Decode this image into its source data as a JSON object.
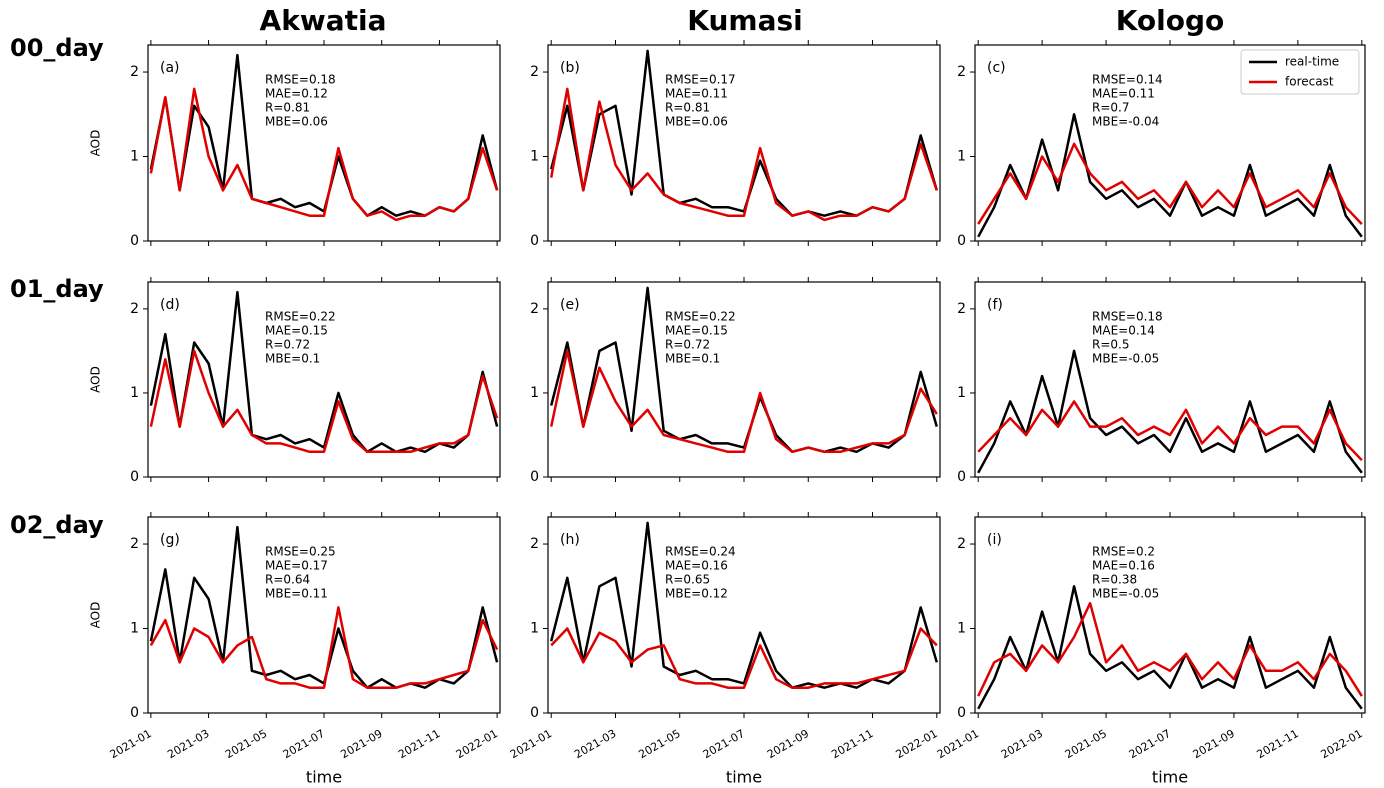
{
  "column_titles": [
    "Akwatia",
    "Kumasi",
    "Kologo"
  ],
  "row_labels": [
    "00_day",
    "01_day",
    "02_day"
  ],
  "chart_data": [
    {
      "type": "line",
      "label": "(a)",
      "ylabel": "AOD",
      "annotations": [
        "RMSE=0.18",
        "MAE=0.12",
        "R=0.81",
        "MBE=0.06"
      ],
      "x": [
        0,
        0.5,
        1,
        1.5,
        2,
        2.5,
        3,
        3.5,
        4,
        4.5,
        5,
        5.5,
        6,
        6.5,
        7,
        7.5,
        8,
        8.5,
        9,
        9.5,
        10,
        10.5,
        11,
        11.5,
        12
      ],
      "xlim": [
        -0.1,
        12.1
      ],
      "xticks": [
        0,
        2,
        4,
        6,
        8,
        10,
        12
      ],
      "ylim": [
        0,
        2.32
      ],
      "yticks": [
        0,
        1,
        2
      ],
      "series": [
        {
          "color": "#000000",
          "values": [
            0.85,
            1.7,
            0.6,
            1.6,
            1.35,
            0.6,
            2.2,
            0.5,
            0.45,
            0.5,
            0.4,
            0.45,
            0.35,
            1.0,
            0.5,
            0.3,
            0.4,
            0.3,
            0.35,
            0.3,
            0.4,
            0.35,
            0.5,
            1.25,
            0.6
          ]
        },
        {
          "color": "#e00000",
          "values": [
            0.8,
            1.7,
            0.6,
            1.8,
            1.0,
            0.6,
            0.9,
            0.5,
            0.45,
            0.4,
            0.35,
            0.3,
            0.3,
            1.1,
            0.5,
            0.3,
            0.35,
            0.25,
            0.3,
            0.3,
            0.4,
            0.35,
            0.5,
            1.1,
            0.6
          ]
        }
      ]
    },
    {
      "type": "line",
      "label": "(b)",
      "annotations": [
        "RMSE=0.17",
        "MAE=0.11",
        "R=0.81",
        "MBE=0.06"
      ],
      "x": [
        0,
        0.5,
        1,
        1.5,
        2,
        2.5,
        3,
        3.5,
        4,
        4.5,
        5,
        5.5,
        6,
        6.5,
        7,
        7.5,
        8,
        8.5,
        9,
        9.5,
        10,
        10.5,
        11,
        11.5,
        12
      ],
      "xlim": [
        -0.1,
        12.1
      ],
      "xticks": [
        0,
        2,
        4,
        6,
        8,
        10,
        12
      ],
      "ylim": [
        0,
        2.32
      ],
      "yticks": [
        0,
        1,
        2
      ],
      "series": [
        {
          "color": "#000000",
          "values": [
            0.85,
            1.6,
            0.6,
            1.5,
            1.6,
            0.55,
            2.25,
            0.55,
            0.45,
            0.5,
            0.4,
            0.4,
            0.35,
            0.95,
            0.5,
            0.3,
            0.35,
            0.3,
            0.35,
            0.3,
            0.4,
            0.35,
            0.5,
            1.25,
            0.6
          ]
        },
        {
          "color": "#e00000",
          "values": [
            0.75,
            1.8,
            0.6,
            1.65,
            0.9,
            0.6,
            0.8,
            0.55,
            0.45,
            0.4,
            0.35,
            0.3,
            0.3,
            1.1,
            0.45,
            0.3,
            0.35,
            0.25,
            0.3,
            0.3,
            0.4,
            0.35,
            0.5,
            1.15,
            0.6
          ]
        }
      ]
    },
    {
      "type": "line",
      "label": "(c)",
      "annotations": [
        "RMSE=0.14",
        "MAE=0.11",
        "R=0.7",
        "MBE=-0.04"
      ],
      "legend": "upper right",
      "x": [
        0,
        0.5,
        1,
        1.5,
        2,
        2.5,
        3,
        3.5,
        4,
        4.5,
        5,
        5.5,
        6,
        6.5,
        7,
        7.5,
        8,
        8.5,
        9,
        9.5,
        10,
        10.5,
        11,
        11.5,
        12
      ],
      "xlim": [
        -0.1,
        12.1
      ],
      "xticks": [
        0,
        2,
        4,
        6,
        8,
        10,
        12
      ],
      "ylim": [
        0,
        2.32
      ],
      "yticks": [
        0,
        1,
        2
      ],
      "series": [
        {
          "name": "real-time",
          "color": "#000000",
          "values": [
            0.05,
            0.4,
            0.9,
            0.5,
            1.2,
            0.6,
            1.5,
            0.7,
            0.5,
            0.6,
            0.4,
            0.5,
            0.3,
            0.7,
            0.3,
            0.4,
            0.3,
            0.9,
            0.3,
            0.4,
            0.5,
            0.3,
            0.9,
            0.3,
            0.05
          ]
        },
        {
          "name": "forecast",
          "color": "#e00000",
          "values": [
            0.2,
            0.5,
            0.8,
            0.5,
            1.0,
            0.7,
            1.15,
            0.8,
            0.6,
            0.7,
            0.5,
            0.6,
            0.4,
            0.7,
            0.4,
            0.6,
            0.4,
            0.8,
            0.4,
            0.5,
            0.6,
            0.4,
            0.8,
            0.4,
            0.2
          ]
        }
      ]
    },
    {
      "type": "line",
      "label": "(d)",
      "ylabel": "AOD",
      "annotations": [
        "RMSE=0.22",
        "MAE=0.15",
        "R=0.72",
        "MBE=0.1"
      ],
      "x": [
        0,
        0.5,
        1,
        1.5,
        2,
        2.5,
        3,
        3.5,
        4,
        4.5,
        5,
        5.5,
        6,
        6.5,
        7,
        7.5,
        8,
        8.5,
        9,
        9.5,
        10,
        10.5,
        11,
        11.5,
        12
      ],
      "xlim": [
        -0.1,
        12.1
      ],
      "xticks": [
        0,
        2,
        4,
        6,
        8,
        10,
        12
      ],
      "ylim": [
        0,
        2.32
      ],
      "yticks": [
        0,
        1,
        2
      ],
      "series": [
        {
          "color": "#000000",
          "values": [
            0.85,
            1.7,
            0.6,
            1.6,
            1.35,
            0.6,
            2.2,
            0.5,
            0.45,
            0.5,
            0.4,
            0.45,
            0.35,
            1.0,
            0.5,
            0.3,
            0.4,
            0.3,
            0.35,
            0.3,
            0.4,
            0.35,
            0.5,
            1.25,
            0.6
          ]
        },
        {
          "color": "#e00000",
          "values": [
            0.6,
            1.4,
            0.6,
            1.5,
            1.0,
            0.6,
            0.8,
            0.5,
            0.4,
            0.4,
            0.35,
            0.3,
            0.3,
            0.9,
            0.45,
            0.3,
            0.3,
            0.3,
            0.3,
            0.35,
            0.4,
            0.4,
            0.5,
            1.2,
            0.7
          ]
        }
      ]
    },
    {
      "type": "line",
      "label": "(e)",
      "annotations": [
        "RMSE=0.22",
        "MAE=0.15",
        "R=0.72",
        "MBE=0.1"
      ],
      "x": [
        0,
        0.5,
        1,
        1.5,
        2,
        2.5,
        3,
        3.5,
        4,
        4.5,
        5,
        5.5,
        6,
        6.5,
        7,
        7.5,
        8,
        8.5,
        9,
        9.5,
        10,
        10.5,
        11,
        11.5,
        12
      ],
      "xlim": [
        -0.1,
        12.1
      ],
      "xticks": [
        0,
        2,
        4,
        6,
        8,
        10,
        12
      ],
      "ylim": [
        0,
        2.32
      ],
      "yticks": [
        0,
        1,
        2
      ],
      "series": [
        {
          "color": "#000000",
          "values": [
            0.85,
            1.6,
            0.6,
            1.5,
            1.6,
            0.55,
            2.25,
            0.55,
            0.45,
            0.5,
            0.4,
            0.4,
            0.35,
            0.95,
            0.5,
            0.3,
            0.35,
            0.3,
            0.35,
            0.3,
            0.4,
            0.35,
            0.5,
            1.25,
            0.6
          ]
        },
        {
          "color": "#e00000",
          "values": [
            0.6,
            1.5,
            0.6,
            1.3,
            0.9,
            0.6,
            0.8,
            0.5,
            0.45,
            0.4,
            0.35,
            0.3,
            0.3,
            1.0,
            0.45,
            0.3,
            0.35,
            0.3,
            0.3,
            0.35,
            0.4,
            0.4,
            0.5,
            1.05,
            0.75
          ]
        }
      ]
    },
    {
      "type": "line",
      "label": "(f)",
      "annotations": [
        "RMSE=0.18",
        "MAE=0.14",
        "R=0.5",
        "MBE=-0.05"
      ],
      "x": [
        0,
        0.5,
        1,
        1.5,
        2,
        2.5,
        3,
        3.5,
        4,
        4.5,
        5,
        5.5,
        6,
        6.5,
        7,
        7.5,
        8,
        8.5,
        9,
        9.5,
        10,
        10.5,
        11,
        11.5,
        12
      ],
      "xlim": [
        -0.1,
        12.1
      ],
      "xticks": [
        0,
        2,
        4,
        6,
        8,
        10,
        12
      ],
      "ylim": [
        0,
        2.32
      ],
      "yticks": [
        0,
        1,
        2
      ],
      "series": [
        {
          "color": "#000000",
          "values": [
            0.05,
            0.4,
            0.9,
            0.5,
            1.2,
            0.6,
            1.5,
            0.7,
            0.5,
            0.6,
            0.4,
            0.5,
            0.3,
            0.7,
            0.3,
            0.4,
            0.3,
            0.9,
            0.3,
            0.4,
            0.5,
            0.3,
            0.9,
            0.3,
            0.05
          ]
        },
        {
          "color": "#e00000",
          "values": [
            0.3,
            0.5,
            0.7,
            0.5,
            0.8,
            0.6,
            0.9,
            0.6,
            0.6,
            0.7,
            0.5,
            0.6,
            0.5,
            0.8,
            0.4,
            0.6,
            0.4,
            0.7,
            0.5,
            0.6,
            0.6,
            0.4,
            0.8,
            0.4,
            0.2
          ]
        }
      ]
    },
    {
      "type": "line",
      "label": "(g)",
      "ylabel": "AOD",
      "xlabel": "time",
      "annotations": [
        "RMSE=0.25",
        "MAE=0.17",
        "R=0.64",
        "MBE=0.11"
      ],
      "x": [
        0,
        0.5,
        1,
        1.5,
        2,
        2.5,
        3,
        3.5,
        4,
        4.5,
        5,
        5.5,
        6,
        6.5,
        7,
        7.5,
        8,
        8.5,
        9,
        9.5,
        10,
        10.5,
        11,
        11.5,
        12
      ],
      "xlim": [
        -0.1,
        12.1
      ],
      "xticks": [
        {
          "value": 0,
          "label": "2021-01"
        },
        {
          "value": 2,
          "label": "2021-03"
        },
        {
          "value": 4,
          "label": "2021-05"
        },
        {
          "value": 6,
          "label": "2021-07"
        },
        {
          "value": 8,
          "label": "2021-09"
        },
        {
          "value": 10,
          "label": "2021-11"
        },
        {
          "value": 12,
          "label": "2022-01"
        }
      ],
      "ylim": [
        0,
        2.32
      ],
      "yticks": [
        0,
        1,
        2
      ],
      "series": [
        {
          "color": "#000000",
          "values": [
            0.85,
            1.7,
            0.6,
            1.6,
            1.35,
            0.6,
            2.2,
            0.5,
            0.45,
            0.5,
            0.4,
            0.45,
            0.35,
            1.0,
            0.5,
            0.3,
            0.4,
            0.3,
            0.35,
            0.3,
            0.4,
            0.35,
            0.5,
            1.25,
            0.6
          ]
        },
        {
          "color": "#e00000",
          "values": [
            0.8,
            1.1,
            0.6,
            1.0,
            0.9,
            0.6,
            0.8,
            0.9,
            0.4,
            0.35,
            0.35,
            0.3,
            0.3,
            1.25,
            0.4,
            0.3,
            0.3,
            0.3,
            0.35,
            0.35,
            0.4,
            0.45,
            0.5,
            1.1,
            0.75
          ]
        }
      ]
    },
    {
      "type": "line",
      "label": "(h)",
      "xlabel": "time",
      "annotations": [
        "RMSE=0.24",
        "MAE=0.16",
        "R=0.65",
        "MBE=0.12"
      ],
      "x": [
        0,
        0.5,
        1,
        1.5,
        2,
        2.5,
        3,
        3.5,
        4,
        4.5,
        5,
        5.5,
        6,
        6.5,
        7,
        7.5,
        8,
        8.5,
        9,
        9.5,
        10,
        10.5,
        11,
        11.5,
        12
      ],
      "xlim": [
        -0.1,
        12.1
      ],
      "xticks": [
        {
          "value": 0,
          "label": "2021-01"
        },
        {
          "value": 2,
          "label": "2021-03"
        },
        {
          "value": 4,
          "label": "2021-05"
        },
        {
          "value": 6,
          "label": "2021-07"
        },
        {
          "value": 8,
          "label": "2021-09"
        },
        {
          "value": 10,
          "label": "2021-11"
        },
        {
          "value": 12,
          "label": "2022-01"
        }
      ],
      "ylim": [
        0,
        2.32
      ],
      "yticks": [
        0,
        1,
        2
      ],
      "series": [
        {
          "color": "#000000",
          "values": [
            0.85,
            1.6,
            0.6,
            1.5,
            1.6,
            0.55,
            2.25,
            0.55,
            0.45,
            0.5,
            0.4,
            0.4,
            0.35,
            0.95,
            0.5,
            0.3,
            0.35,
            0.3,
            0.35,
            0.3,
            0.4,
            0.35,
            0.5,
            1.25,
            0.6
          ]
        },
        {
          "color": "#e00000",
          "values": [
            0.8,
            1.0,
            0.6,
            0.95,
            0.85,
            0.6,
            0.75,
            0.8,
            0.4,
            0.35,
            0.35,
            0.3,
            0.3,
            0.8,
            0.4,
            0.3,
            0.3,
            0.35,
            0.35,
            0.35,
            0.4,
            0.45,
            0.5,
            1.0,
            0.8
          ]
        }
      ]
    },
    {
      "type": "line",
      "label": "(i)",
      "xlabel": "time",
      "annotations": [
        "RMSE=0.2",
        "MAE=0.16",
        "R=0.38",
        "MBE=-0.05"
      ],
      "x": [
        0,
        0.5,
        1,
        1.5,
        2,
        2.5,
        3,
        3.5,
        4,
        4.5,
        5,
        5.5,
        6,
        6.5,
        7,
        7.5,
        8,
        8.5,
        9,
        9.5,
        10,
        10.5,
        11,
        11.5,
        12
      ],
      "xlim": [
        -0.1,
        12.1
      ],
      "xticks": [
        {
          "value": 0,
          "label": "2021-01"
        },
        {
          "value": 2,
          "label": "2021-03"
        },
        {
          "value": 4,
          "label": "2021-05"
        },
        {
          "value": 6,
          "label": "2021-07"
        },
        {
          "value": 8,
          "label": "2021-09"
        },
        {
          "value": 10,
          "label": "2021-11"
        },
        {
          "value": 12,
          "label": "2022-01"
        }
      ],
      "ylim": [
        0,
        2.32
      ],
      "yticks": [
        0,
        1,
        2
      ],
      "series": [
        {
          "color": "#000000",
          "values": [
            0.05,
            0.4,
            0.9,
            0.5,
            1.2,
            0.6,
            1.5,
            0.7,
            0.5,
            0.6,
            0.4,
            0.5,
            0.3,
            0.7,
            0.3,
            0.4,
            0.3,
            0.9,
            0.3,
            0.4,
            0.5,
            0.3,
            0.9,
            0.3,
            0.05
          ]
        },
        {
          "color": "#e00000",
          "values": [
            0.2,
            0.6,
            0.7,
            0.5,
            0.8,
            0.6,
            0.9,
            1.3,
            0.6,
            0.8,
            0.5,
            0.6,
            0.5,
            0.7,
            0.4,
            0.6,
            0.4,
            0.8,
            0.5,
            0.5,
            0.6,
            0.4,
            0.7,
            0.5,
            0.2
          ]
        }
      ]
    }
  ]
}
